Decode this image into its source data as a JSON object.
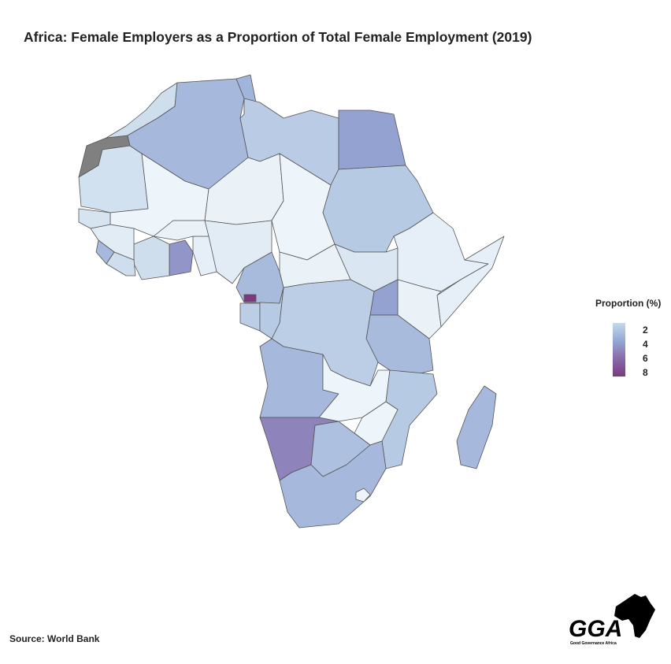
{
  "title": "Africa: Female Employers as a Proportion of Total Female Employment (2019)",
  "source": "Source: World Bank",
  "logo": {
    "text": "GGA",
    "subtitle": "Good Governance Africa"
  },
  "chart_data": {
    "type": "choropleth",
    "title": "Africa: Female Employers as a Proportion of Total Female Employment (2019)",
    "legend": {
      "title": "Proportion (%)",
      "ticks": [
        2,
        4,
        6,
        8
      ],
      "placement": "right"
    },
    "color_scale": {
      "1": "#eef5fa",
      "2": "#c6d8ea",
      "4": "#94a8d4",
      "6": "#8a6aa8",
      "8": "#7b3a80"
    },
    "missing_color": "#808080",
    "regions": [
      {
        "name": "Western Sahara",
        "value": null
      },
      {
        "name": "Morocco",
        "value": 1.8
      },
      {
        "name": "Mauritania",
        "value": 1.7
      },
      {
        "name": "Algeria",
        "value": 3.3
      },
      {
        "name": "Tunisia",
        "value": 3.5
      },
      {
        "name": "Libya",
        "value": 2.5
      },
      {
        "name": "Egypt",
        "value": 4.2
      },
      {
        "name": "Mali",
        "value": 1.0
      },
      {
        "name": "Niger",
        "value": 1.1
      },
      {
        "name": "Chad",
        "value": 1.0
      },
      {
        "name": "Sudan",
        "value": 2.6
      },
      {
        "name": "South Sudan",
        "value": 1.5
      },
      {
        "name": "Ethiopia",
        "value": 1.2
      },
      {
        "name": "Somalia",
        "value": 1.2
      },
      {
        "name": "Kenya",
        "value": 1.1
      },
      {
        "name": "Uganda",
        "value": 4.2
      },
      {
        "name": "Tanzania",
        "value": 3.2
      },
      {
        "name": "DR Congo",
        "value": 2.4
      },
      {
        "name": "Central African Republic",
        "value": 1.1
      },
      {
        "name": "Cameroon",
        "value": 3.2
      },
      {
        "name": "Nigeria",
        "value": 1.3
      },
      {
        "name": "Benin",
        "value": 1.2
      },
      {
        "name": "Burkina Faso",
        "value": 1.1
      },
      {
        "name": "Ghana",
        "value": 4.6
      },
      {
        "name": "Cote d'Ivoire",
        "value": 1.8
      },
      {
        "name": "Guinea",
        "value": 1.3
      },
      {
        "name": "Sierra Leone",
        "value": 3.3
      },
      {
        "name": "Liberia",
        "value": 1.8
      },
      {
        "name": "Senegal",
        "value": 1.6
      },
      {
        "name": "Gabon",
        "value": 2.4
      },
      {
        "name": "Congo",
        "value": 2.6
      },
      {
        "name": "Equatorial Guinea",
        "value": 8.0
      },
      {
        "name": "Angola",
        "value": 3.3
      },
      {
        "name": "Zambia",
        "value": 1.0
      },
      {
        "name": "Mozambique",
        "value": 2.6
      },
      {
        "name": "Zimbabwe",
        "value": 1.0
      },
      {
        "name": "Namibia",
        "value": 5.2
      },
      {
        "name": "Botswana",
        "value": 3.0
      },
      {
        "name": "South Africa",
        "value": 3.3
      },
      {
        "name": "Lesotho",
        "value": 1.0
      },
      {
        "name": "Madagascar",
        "value": 3.3
      }
    ]
  }
}
